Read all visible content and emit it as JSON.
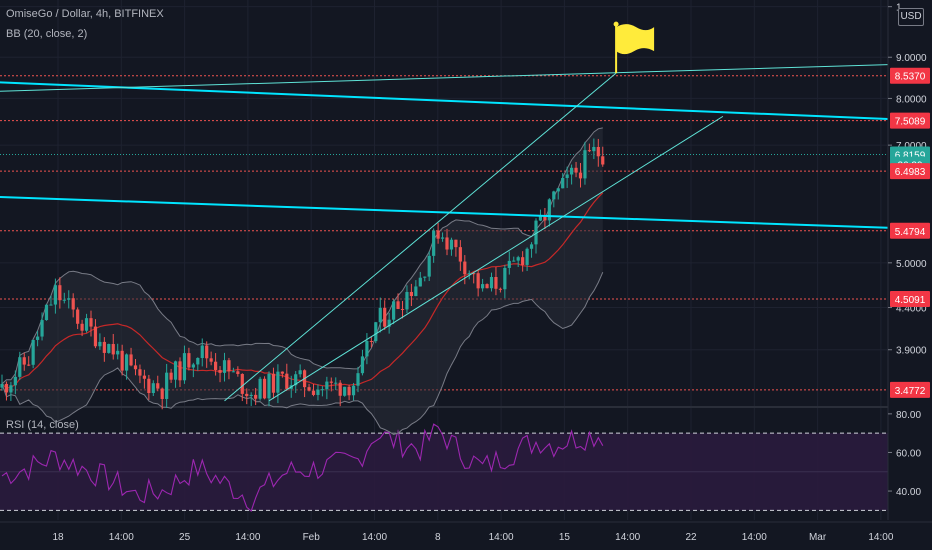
{
  "header": {
    "symbol_title": "OmiseGo / Dollar, 4h, BITFINEX",
    "bb_label": "BB (20, close, 2)",
    "rsi_label": "RSI (14, close)",
    "currency_button": "USD"
  },
  "chart_data": [
    {
      "type": "candlestick",
      "title": "OmiseGo / Dollar, 4h, BITFINEX",
      "y_scale": "log",
      "ylim": [
        3.33,
        10.6
      ],
      "price_ticks": [
        "1",
        "9.0000",
        "8.0000",
        "7.0000",
        "5.0000",
        "4.4000",
        "3.9000"
      ],
      "price_tick_values": [
        10.4,
        9.0,
        8.0,
        7.0,
        5.0,
        4.4,
        3.9
      ],
      "price_labels": [
        {
          "text": "8.5370",
          "value": 8.537,
          "color": "#f23645"
        },
        {
          "text": "7.5089",
          "value": 7.5089,
          "color": "#f23645"
        },
        {
          "text": "6.8159",
          "value": 6.8159,
          "color": "#26a69a"
        },
        {
          "text": "26:39",
          "value": 6.62,
          "color": "#26a69a"
        },
        {
          "text": "6.4983",
          "value": 6.4983,
          "color": "#f23645"
        },
        {
          "text": "5.4794",
          "value": 5.4794,
          "color": "#f23645"
        },
        {
          "text": "4.5091",
          "value": 4.5091,
          "color": "#f23645"
        },
        {
          "text": "3.4772",
          "value": 3.4772,
          "color": "#f23645"
        }
      ],
      "horizontal_levels": [
        8.537,
        7.5089,
        6.4983,
        5.4794,
        4.5091,
        3.4772
      ],
      "last_price_line": 6.8159,
      "time_axis_labels": [
        "18",
        "14:00",
        "25",
        "14:00",
        "Feb",
        "14:00",
        "8",
        "14:00",
        "15",
        "14:00",
        "22",
        "14:00",
        "Mar",
        "14:00"
      ],
      "bar_count": 135,
      "candles_anchor": [
        [
          0,
          3.5
        ],
        [
          6,
          3.8
        ],
        [
          12,
          4.6
        ],
        [
          18,
          4.2
        ],
        [
          25,
          3.9
        ],
        [
          30,
          3.6
        ],
        [
          36,
          3.5
        ],
        [
          44,
          3.9
        ],
        [
          50,
          3.7
        ],
        [
          56,
          3.45
        ],
        [
          64,
          3.6
        ],
        [
          72,
          3.5
        ],
        [
          80,
          3.55
        ],
        [
          84,
          4.2
        ],
        [
          88,
          4.4
        ],
        [
          94,
          4.8
        ],
        [
          98,
          5.5
        ],
        [
          103,
          5.1
        ],
        [
          108,
          4.6
        ],
        [
          113,
          4.8
        ],
        [
          118,
          5.2
        ],
        [
          121,
          5.6
        ],
        [
          124,
          6.0
        ],
        [
          128,
          6.4
        ],
        [
          133,
          6.85
        ]
      ],
      "trend_lines": [
        {
          "color": "#00e5ff",
          "width": 2,
          "from": [
            -6,
            8.4
          ],
          "to": [
            210,
            7.5
          ]
        },
        {
          "color": "#00e5ff",
          "width": 2,
          "from": [
            -6,
            6.05
          ],
          "to": [
            210,
            5.5
          ]
        },
        {
          "color": "#5fe3d7",
          "width": 1,
          "from": [
            -6,
            8.15
          ],
          "to": [
            210,
            8.85
          ]
        },
        {
          "color": "#5fe3d7",
          "width": 1,
          "from": [
            50,
            3.37
          ],
          "to": [
            138,
            8.6
          ]
        },
        {
          "color": "#5fe3d7",
          "width": 1,
          "from": [
            60,
            3.37
          ],
          "to": [
            162,
            7.6
          ]
        }
      ],
      "flag_annotation": {
        "bar": 138,
        "value": 8.6,
        "color": "#ffeb3b"
      }
    },
    {
      "type": "line",
      "title": "RSI (14, close)",
      "ylim": [
        25,
        82
      ],
      "rsi_ticks": [
        "80.00",
        "60.00",
        "40.00"
      ],
      "rsi_tick_values": [
        80,
        60,
        40
      ],
      "band_upper": 70,
      "band_lower": 30,
      "rsi_anchor": [
        [
          0,
          48
        ],
        [
          6,
          52
        ],
        [
          12,
          58
        ],
        [
          18,
          52
        ],
        [
          25,
          45
        ],
        [
          30,
          38
        ],
        [
          36,
          40
        ],
        [
          44,
          52
        ],
        [
          50,
          44
        ],
        [
          56,
          36
        ],
        [
          64,
          50
        ],
        [
          72,
          52
        ],
        [
          80,
          56
        ],
        [
          84,
          70
        ],
        [
          88,
          66
        ],
        [
          94,
          62
        ],
        [
          98,
          72
        ],
        [
          103,
          60
        ],
        [
          108,
          52
        ],
        [
          113,
          58
        ],
        [
          118,
          64
        ],
        [
          121,
          66
        ],
        [
          124,
          64
        ],
        [
          128,
          67
        ],
        [
          133,
          69
        ]
      ]
    }
  ],
  "colors": {
    "background": "#131722",
    "grid": "#1e2230",
    "up": "#26a69a",
    "down": "#ef5350",
    "bb_basis": "#c62828",
    "bb_band": "#787b86",
    "rsi_line": "#9c27b0",
    "rsi_fill": "#2a1b3d",
    "axis_text": "#d1d4dc",
    "level_line": "#ef5350"
  }
}
